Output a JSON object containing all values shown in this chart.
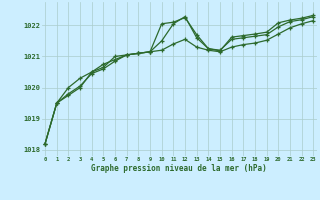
{
  "background_color": "#cceeff",
  "grid_color": "#aacccc",
  "line_color": "#2d6a2d",
  "xlabel": "Graphe pression niveau de la mer (hPa)",
  "ylim": [
    1017.8,
    1022.75
  ],
  "xlim": [
    -0.3,
    23.3
  ],
  "yticks": [
    1018,
    1019,
    1020,
    1021,
    1022
  ],
  "xticks": [
    0,
    1,
    2,
    3,
    4,
    5,
    6,
    7,
    8,
    9,
    10,
    11,
    12,
    13,
    14,
    15,
    16,
    17,
    18,
    19,
    20,
    21,
    22,
    23
  ],
  "series": [
    [
      1018.2,
      1019.5,
      1019.75,
      1020.0,
      1020.5,
      1020.75,
      1020.9,
      1021.05,
      1021.1,
      1021.15,
      1021.2,
      1021.4,
      1021.55,
      1021.3,
      1021.2,
      1021.15,
      1021.3,
      1021.38,
      1021.43,
      1021.52,
      1021.72,
      1021.92,
      1022.05,
      1022.15
    ],
    [
      1018.2,
      1019.5,
      1020.0,
      1020.3,
      1020.5,
      1020.65,
      1021.0,
      1021.05,
      1021.1,
      1021.15,
      1022.05,
      1022.1,
      1022.25,
      1021.7,
      1021.25,
      1021.2,
      1021.55,
      1021.6,
      1021.65,
      1021.7,
      1021.95,
      1022.12,
      1022.18,
      1022.28
    ],
    [
      1018.2,
      1019.5,
      1019.8,
      1020.05,
      1020.45,
      1020.6,
      1020.85,
      1021.05,
      1021.1,
      1021.15,
      1021.5,
      1022.05,
      1022.28,
      1021.6,
      1021.25,
      1021.18,
      1021.62,
      1021.67,
      1021.72,
      1021.78,
      1022.08,
      1022.17,
      1022.23,
      1022.32
    ]
  ]
}
